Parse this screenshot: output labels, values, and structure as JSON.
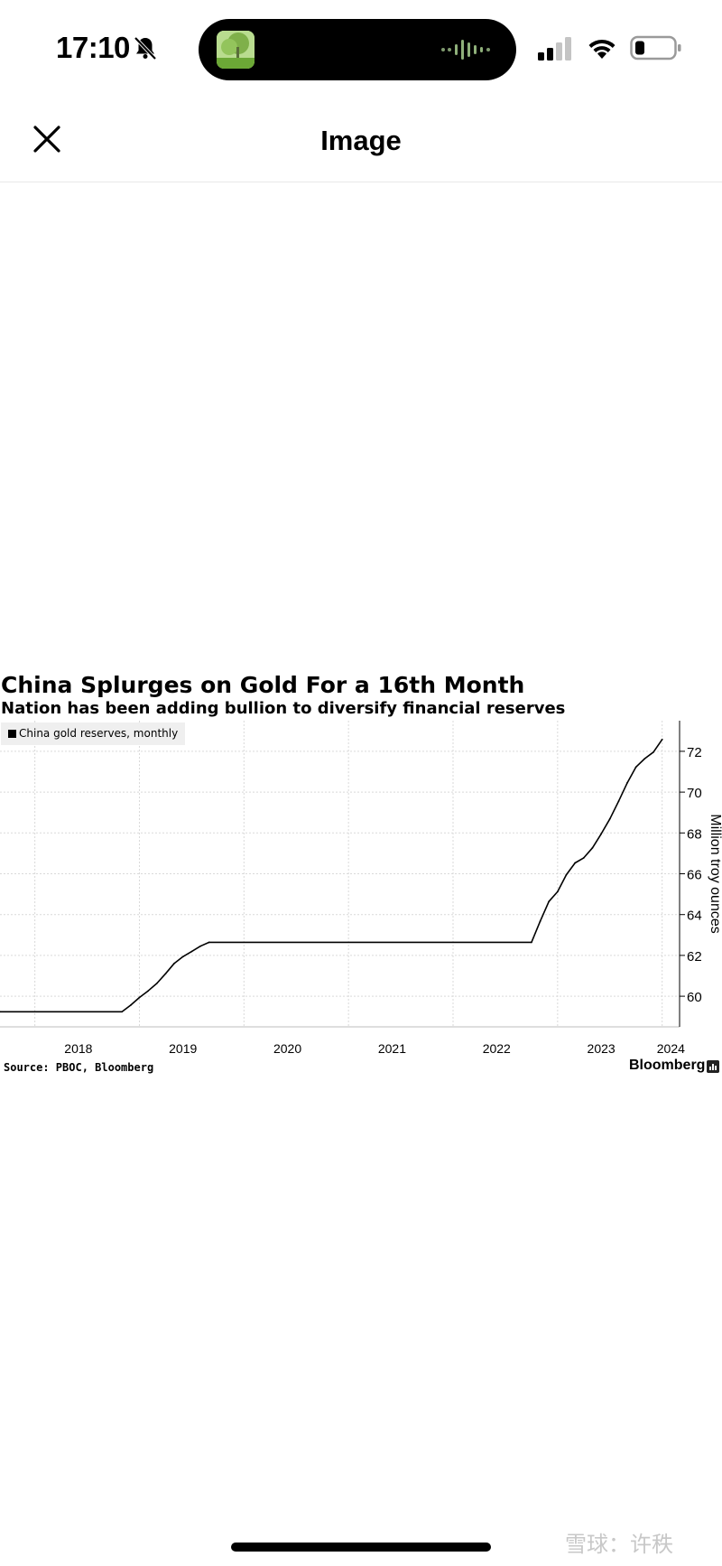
{
  "status_bar": {
    "time": "17:10",
    "icons": [
      "bell-slash-icon",
      "audio-wave-icon",
      "cellular-signal-icon",
      "wifi-icon",
      "battery-icon"
    ]
  },
  "nav": {
    "title": "Image",
    "close_icon": "close-icon"
  },
  "chart": {
    "title": "China Splurges on Gold For a 16th Month",
    "subtitle": "Nation has been adding bullion to diversify financial reserves",
    "legend": "China gold reserves, monthly",
    "source": "Source: PBOC, Bloomberg",
    "brand": "Bloomberg"
  },
  "chart_data": {
    "type": "line",
    "title": "China Splurges on Gold For a 16th Month",
    "subtitle": "Nation has been adding bullion to diversify financial reserves",
    "xlabel": "",
    "ylabel": "Million troy ounces",
    "ylim": [
      58.5,
      73.5
    ],
    "xlim": [
      "2017-09",
      "2024-03"
    ],
    "y_ticks": [
      60,
      62,
      64,
      66,
      68,
      70,
      72
    ],
    "x_ticks": [
      "2018",
      "2019",
      "2020",
      "2021",
      "2022",
      "2023",
      "2024"
    ],
    "y_axis_side": "right",
    "grid": true,
    "legend_position": "top-left",
    "series": [
      {
        "name": "China gold reserves, monthly",
        "color": "#000000",
        "x": [
          "2017-09",
          "2018-11",
          "2018-12",
          "2019-01",
          "2019-02",
          "2019-03",
          "2019-04",
          "2019-05",
          "2019-06",
          "2019-07",
          "2019-08",
          "2019-09",
          "2022-10",
          "2022-11",
          "2022-12",
          "2023-01",
          "2023-02",
          "2023-03",
          "2023-04",
          "2023-05",
          "2023-06",
          "2023-07",
          "2023-08",
          "2023-09",
          "2023-10",
          "2023-11",
          "2023-12",
          "2024-01"
        ],
        "y": [
          59.24,
          59.24,
          59.56,
          59.94,
          60.26,
          60.63,
          61.1,
          61.61,
          61.94,
          62.19,
          62.45,
          62.64,
          62.64,
          63.67,
          64.64,
          65.12,
          65.95,
          66.53,
          66.78,
          67.27,
          67.95,
          68.69,
          69.55,
          70.46,
          71.23,
          71.64,
          71.96,
          72.58
        ]
      }
    ]
  },
  "bottom": {
    "watermark": "雪球：许秩"
  }
}
